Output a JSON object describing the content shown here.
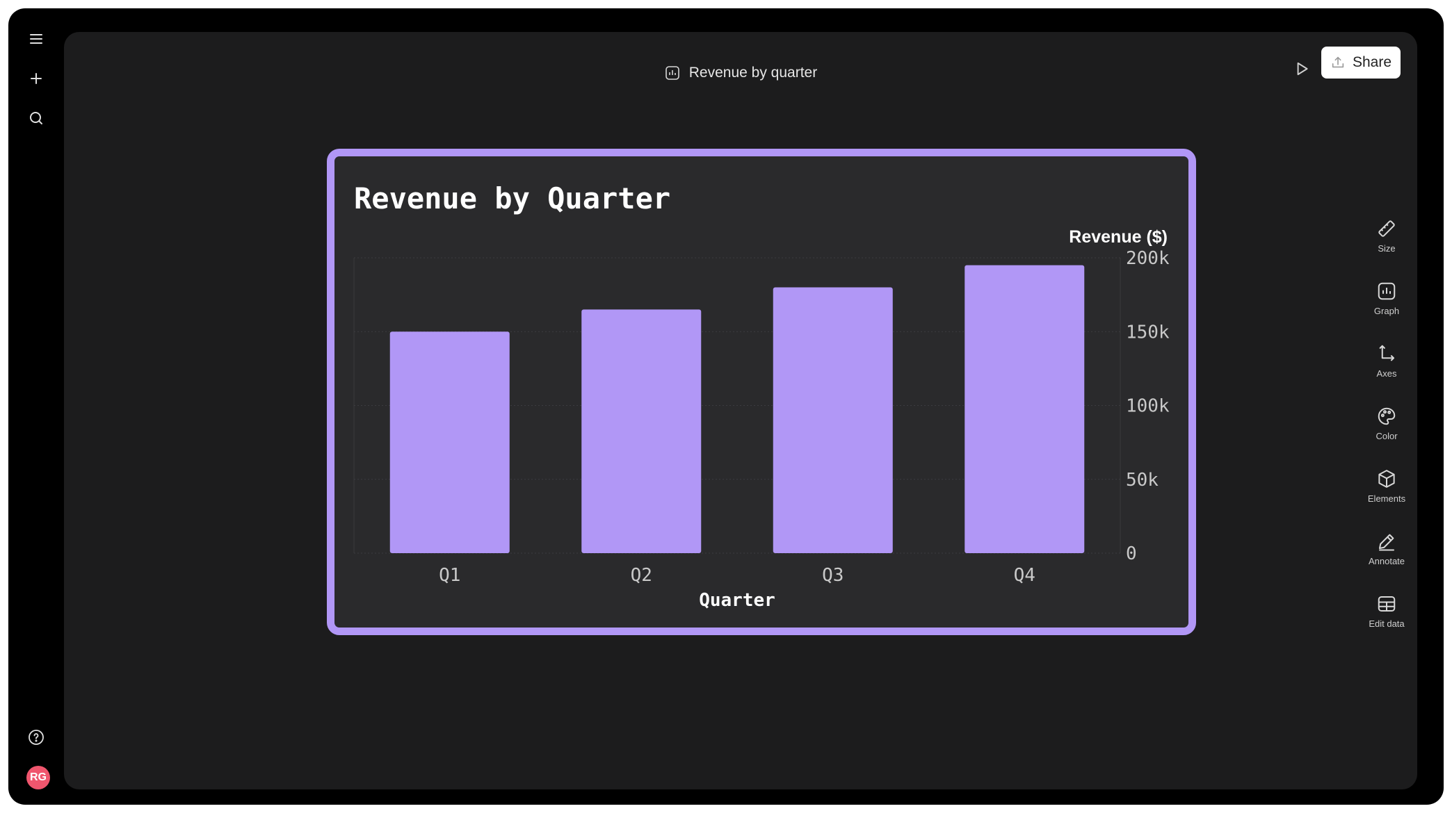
{
  "window": {
    "title": "Revenue by quarter",
    "share_label": "Share"
  },
  "left_rail": {
    "items": [
      {
        "icon": "menu-icon"
      },
      {
        "icon": "plus-icon"
      },
      {
        "icon": "search-icon"
      }
    ],
    "help_icon": "help-icon",
    "avatar_initials": "RG",
    "avatar_color": "#f0566e"
  },
  "right_tools": [
    {
      "label": "Size",
      "icon": "ruler-icon"
    },
    {
      "label": "Graph",
      "icon": "graph-icon"
    },
    {
      "label": "Axes",
      "icon": "axes-icon"
    },
    {
      "label": "Color",
      "icon": "palette-icon"
    },
    {
      "label": "Elements",
      "icon": "cube-icon"
    },
    {
      "label": "Annotate",
      "icon": "pen-icon"
    },
    {
      "label": "Edit data",
      "icon": "table-icon"
    }
  ],
  "colors": {
    "accent": "#b197f6",
    "canvas_bg": "#1c1c1d",
    "card_bg": "#2a2a2c"
  },
  "chart_data": {
    "type": "bar",
    "title": "Revenue by Quarter",
    "xlabel": "Quarter",
    "ylabel": "Revenue ($)",
    "categories": [
      "Q1",
      "Q2",
      "Q3",
      "Q4"
    ],
    "values": [
      150000,
      165000,
      180000,
      195000
    ],
    "ylim": [
      0,
      200000
    ],
    "yticks": [
      0,
      50000,
      100000,
      150000,
      200000
    ],
    "ytick_labels": [
      "0",
      "50k",
      "100k",
      "150k",
      "200k"
    ],
    "y_axis_side": "right",
    "grid": true,
    "bar_color": "#b197f6"
  }
}
